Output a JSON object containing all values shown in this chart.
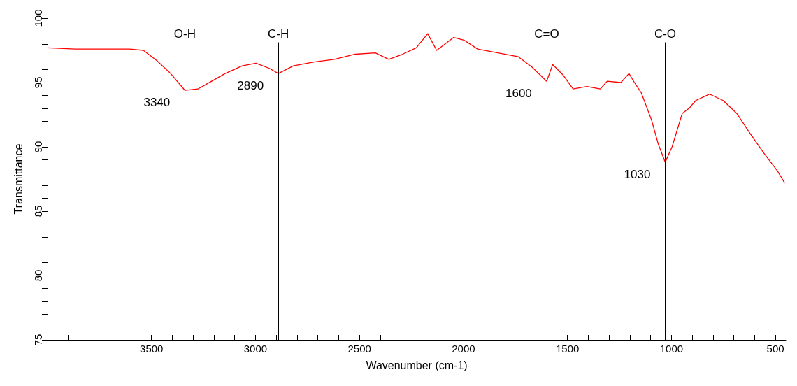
{
  "chart_data": {
    "type": "line",
    "xlabel": "Wavenumber (cm-1)",
    "ylabel": "Transmittance",
    "x": [
      4000,
      3867,
      3736,
      3605,
      3539,
      3474,
      3408,
      3340,
      3277,
      3211,
      3146,
      3064,
      2998,
      2933,
      2890,
      2818,
      2719,
      2621,
      2523,
      2424,
      2359,
      2293,
      2227,
      2172,
      2129,
      2047,
      1998,
      1932,
      1834,
      1736,
      1670,
      1600,
      1571,
      1522,
      1473,
      1407,
      1342,
      1309,
      1243,
      1204,
      1178,
      1145,
      1096,
      1063,
      1030,
      997,
      948,
      915,
      883,
      817,
      751,
      686,
      620,
      555,
      489,
      456
    ],
    "series": [
      {
        "color": "#ff0000",
        "values": [
          97.7,
          97.6,
          97.6,
          97.6,
          97.5,
          96.7,
          95.7,
          94.4,
          94.5,
          95.1,
          95.7,
          96.3,
          96.5,
          96.1,
          95.7,
          96.3,
          96.6,
          96.8,
          97.2,
          97.3,
          96.8,
          97.2,
          97.7,
          98.8,
          97.5,
          98.5,
          98.3,
          97.6,
          97.3,
          97.0,
          96.2,
          95.1,
          96.4,
          95.6,
          94.5,
          94.7,
          94.5,
          95.1,
          95.0,
          95.7,
          95.0,
          94.2,
          92.1,
          90.2,
          88.8,
          90.0,
          92.6,
          93.0,
          93.6,
          94.1,
          93.6,
          92.6,
          91.0,
          89.5,
          88.1,
          87.2
        ]
      }
    ],
    "xlim": [
      4000,
      450
    ],
    "xticks": [
      {
        "value": 3900,
        "label": null
      },
      {
        "value": 3800,
        "label": null
      },
      {
        "value": 3700,
        "label": null
      },
      {
        "value": 3600,
        "label": null
      },
      3500,
      {
        "value": 3400,
        "label": null
      },
      {
        "value": 3300,
        "label": null
      },
      {
        "value": 3200,
        "label": null
      },
      {
        "value": 3100,
        "label": null
      },
      3000,
      {
        "value": 2900,
        "label": null
      },
      {
        "value": 2800,
        "label": null
      },
      {
        "value": 2700,
        "label": null
      },
      {
        "value": 2600,
        "label": null
      },
      2500,
      {
        "value": 2400,
        "label": null
      },
      {
        "value": 2300,
        "label": null
      },
      {
        "value": 2200,
        "label": null
      },
      {
        "value": 2100,
        "label": null
      },
      2000,
      {
        "value": 1900,
        "label": null
      },
      {
        "value": 1800,
        "label": null
      },
      {
        "value": 1700,
        "label": null
      },
      {
        "value": 1600,
        "label": null
      },
      1500,
      {
        "value": 1400,
        "label": null
      },
      {
        "value": 1300,
        "label": null
      },
      {
        "value": 1200,
        "label": null
      },
      {
        "value": 1100,
        "label": null
      },
      1000,
      {
        "value": 900,
        "label": null
      },
      {
        "value": 800,
        "label": null
      },
      {
        "value": 700,
        "label": null
      },
      {
        "value": 600,
        "label": null
      },
      500
    ],
    "ylim": [
      75,
      100
    ],
    "yticks": [
      75,
      {
        "value": 76,
        "label": null
      },
      {
        "value": 77,
        "label": null
      },
      {
        "value": 78,
        "label": null
      },
      {
        "value": 79,
        "label": null
      },
      80,
      {
        "value": 81,
        "label": null
      },
      {
        "value": 82,
        "label": null
      },
      {
        "value": 83,
        "label": null
      },
      {
        "value": 84,
        "label": null
      },
      85,
      {
        "value": 86,
        "label": null
      },
      {
        "value": 87,
        "label": null
      },
      {
        "value": 88,
        "label": null
      },
      {
        "value": 89,
        "label": null
      },
      90,
      {
        "value": 91,
        "label": null
      },
      {
        "value": 92,
        "label": null
      },
      {
        "value": 93,
        "label": null
      },
      {
        "value": 94,
        "label": null
      },
      95,
      {
        "value": 96,
        "label": null
      },
      {
        "value": 97,
        "label": null
      },
      {
        "value": 98,
        "label": null
      },
      {
        "value": 99,
        "label": null
      },
      100
    ],
    "ref_lines": [
      {
        "axis": "x",
        "value": 3340,
        "label": "O-H",
        "color": "#000000"
      },
      {
        "axis": "x",
        "value": 2890,
        "label": "C-H",
        "color": "#000000"
      },
      {
        "axis": "x",
        "value": 1600,
        "label": "C=O",
        "color": "#000000"
      },
      {
        "axis": "x",
        "value": 1030,
        "label": "C-O",
        "color": "#000000"
      }
    ],
    "annotations": [
      {
        "text": "3340",
        "x": 3340,
        "y": 94.4
      },
      {
        "text": "2890",
        "x": 2890,
        "y": 95.7
      },
      {
        "text": "1600",
        "x": 1600,
        "y": 95.1
      },
      {
        "text": "1030",
        "x": 1030,
        "y": 88.8
      }
    ],
    "grid": false,
    "marker": "none",
    "line_style": "solid"
  }
}
